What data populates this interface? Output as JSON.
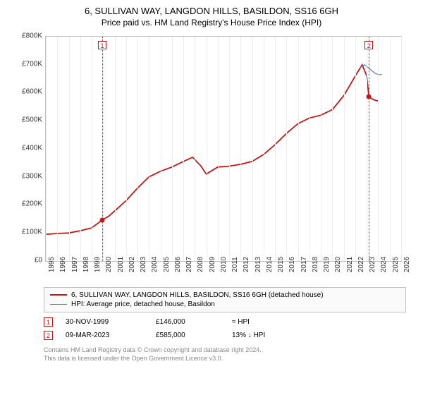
{
  "title": "6, SULLIVAN WAY, LANGDON HILLS, BASILDON, SS16 6GH",
  "subtitle": "Price paid vs. HM Land Registry's House Price Index (HPI)",
  "chart": {
    "type": "line",
    "background_color": "#ffffff",
    "border_color": "#bfbfbf",
    "grid_color": "#ededed",
    "ylim": [
      0,
      800000
    ],
    "ytick_step": 100000,
    "yticks": [
      "£0",
      "£100K",
      "£200K",
      "£300K",
      "£400K",
      "£500K",
      "£600K",
      "£700K",
      "£800K"
    ],
    "xlim": [
      1995,
      2026
    ],
    "xticks": [
      1995,
      1996,
      1997,
      1998,
      1999,
      2000,
      2001,
      2002,
      2003,
      2004,
      2005,
      2006,
      2007,
      2008,
      2009,
      2010,
      2011,
      2012,
      2013,
      2014,
      2015,
      2016,
      2017,
      2018,
      2019,
      2020,
      2021,
      2022,
      2023,
      2024,
      2025,
      2026
    ],
    "series": [
      {
        "name": "property",
        "label": "6, SULLIVAN WAY, LANGDON HILLS, BASILDON, SS16 6GH (detached house)",
        "color": "#c01818",
        "line_width": 1.8,
        "points": [
          [
            1995.0,
            95000
          ],
          [
            1996.0,
            98000
          ],
          [
            1997.0,
            100000
          ],
          [
            1998.0,
            108000
          ],
          [
            1999.0,
            118000
          ],
          [
            1999.92,
            146000
          ],
          [
            2000.5,
            160000
          ],
          [
            2001.0,
            178000
          ],
          [
            2002.0,
            215000
          ],
          [
            2003.0,
            260000
          ],
          [
            2004.0,
            300000
          ],
          [
            2005.0,
            320000
          ],
          [
            2006.0,
            335000
          ],
          [
            2007.0,
            355000
          ],
          [
            2007.8,
            370000
          ],
          [
            2008.5,
            340000
          ],
          [
            2009.0,
            310000
          ],
          [
            2010.0,
            335000
          ],
          [
            2011.0,
            338000
          ],
          [
            2012.0,
            345000
          ],
          [
            2013.0,
            355000
          ],
          [
            2014.0,
            380000
          ],
          [
            2015.0,
            415000
          ],
          [
            2016.0,
            455000
          ],
          [
            2017.0,
            490000
          ],
          [
            2018.0,
            510000
          ],
          [
            2019.0,
            520000
          ],
          [
            2020.0,
            540000
          ],
          [
            2021.0,
            590000
          ],
          [
            2022.0,
            660000
          ],
          [
            2022.6,
            700000
          ],
          [
            2023.0,
            660000
          ],
          [
            2023.19,
            585000
          ],
          [
            2023.6,
            575000
          ],
          [
            2024.0,
            570000
          ]
        ]
      },
      {
        "name": "hpi",
        "label": "HPI: Average price, detached house, Basildon",
        "color": "#4a7ecb",
        "line_width": 1.2,
        "points": [
          [
            2022.4,
            690000
          ],
          [
            2022.8,
            700000
          ],
          [
            2023.1,
            690000
          ],
          [
            2023.4,
            680000
          ],
          [
            2023.7,
            670000
          ],
          [
            2024.0,
            665000
          ],
          [
            2024.3,
            665000
          ]
        ]
      }
    ],
    "markers": [
      {
        "id": "1",
        "x": 1999.92,
        "y": 146000,
        "dot_color": "#c01818"
      },
      {
        "id": "2",
        "x": 2023.19,
        "y": 585000,
        "dot_color": "#c01818"
      }
    ],
    "label_fontsize": 10,
    "title_fontsize": 13
  },
  "legend": {
    "items": [
      {
        "color": "#c01818",
        "width": 2,
        "label": "6, SULLIVAN WAY, LANGDON HILLS, BASILDON, SS16 6GH (detached house)"
      },
      {
        "color": "#4a7ecb",
        "width": 1,
        "label": "HPI: Average price, detached house, Basildon"
      }
    ]
  },
  "events": [
    {
      "id": "1",
      "date": "30-NOV-1999",
      "price": "£146,000",
      "note": "≈ HPI"
    },
    {
      "id": "2",
      "date": "09-MAR-2023",
      "price": "£585,000",
      "note": "13% ↓ HPI"
    }
  ],
  "copyright": {
    "line1": "Contains HM Land Registry data © Crown copyright and database right 2024.",
    "line2": "This data is licensed under the Open Government Licence v3.0."
  }
}
